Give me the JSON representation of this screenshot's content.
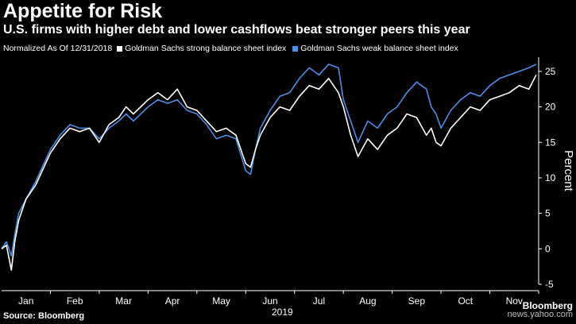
{
  "header": {
    "title": "Appetite for Risk",
    "subtitle": "U.S. firms with higher debt and lower cashflows beat stronger peers this year"
  },
  "legend": {
    "note": "Normalized As Of 12/31/2018",
    "entries": [
      {
        "label": "Goldman Sachs strong balance sheet index",
        "color": "#ffffff"
      },
      {
        "label": "Goldman Sachs weak balance sheet index",
        "color": "#4a8ee6"
      }
    ]
  },
  "footer": {
    "source": "Source: Bloomberg",
    "brand": "Bloomberg",
    "watermark": "news.yahoo.com"
  },
  "colors": {
    "background": "#000000",
    "strong": "#ffffff",
    "weak": "#4a8ee6",
    "axis": "#ffffff"
  },
  "chart_data": {
    "type": "line",
    "title": "Appetite for Risk",
    "subtitle": "U.S. firms with higher debt and lower cashflows beat stronger peers this year",
    "xlabel": "2019",
    "ylabel": "Percent",
    "ylim": [
      -5,
      27
    ],
    "yticks": [
      -5,
      0,
      5,
      10,
      15,
      20,
      25
    ],
    "xlim": [
      0,
      11
    ],
    "xtick_labels": [
      "Jan",
      "Feb",
      "Mar",
      "Apr",
      "May",
      "Jun",
      "Jul",
      "Aug",
      "Sep",
      "Oct",
      "Nov"
    ],
    "xtick_positions": [
      0.5,
      1.5,
      2.5,
      3.5,
      4.5,
      5.5,
      6.5,
      7.5,
      8.5,
      9.5,
      10.5
    ],
    "x_unit": "months since 12/31/2018",
    "grid": false,
    "legend_position": "top",
    "series": [
      {
        "name": "Goldman Sachs strong balance sheet index",
        "color": "#ffffff",
        "x": [
          0,
          0.1,
          0.2,
          0.27,
          0.35,
          0.5,
          0.7,
          0.9,
          1.0,
          1.2,
          1.4,
          1.6,
          1.8,
          2.0,
          2.2,
          2.4,
          2.55,
          2.7,
          3.0,
          3.2,
          3.4,
          3.6,
          3.8,
          4.0,
          4.2,
          4.4,
          4.6,
          4.8,
          5.0,
          5.1,
          5.2,
          5.3,
          5.5,
          5.7,
          5.9,
          6.1,
          6.3,
          6.5,
          6.7,
          6.9,
          7.0,
          7.15,
          7.3,
          7.5,
          7.7,
          7.9,
          8.1,
          8.3,
          8.5,
          8.7,
          8.8,
          8.9,
          9.0,
          9.2,
          9.4,
          9.6,
          9.8,
          10.0,
          10.2,
          10.4,
          10.6,
          10.8,
          10.95
        ],
        "values": [
          0,
          0.5,
          -3,
          1,
          4,
          7,
          9,
          12,
          13.5,
          15.5,
          17,
          16.5,
          17,
          15,
          17.5,
          18.5,
          20,
          19,
          21,
          22,
          21,
          22.5,
          20,
          19.5,
          18,
          16.5,
          17,
          16,
          12,
          11.5,
          14,
          16,
          18.5,
          20,
          19.5,
          21.5,
          23,
          22.5,
          24,
          22,
          20,
          16,
          13,
          15.5,
          14,
          16,
          17,
          19,
          18.5,
          16,
          17,
          15,
          14.5,
          17,
          18.5,
          20,
          19.5,
          21,
          21.5,
          22,
          23,
          22.5,
          24.5
        ]
      },
      {
        "name": "Goldman Sachs weak balance sheet index",
        "color": "#4a8ee6",
        "x": [
          0,
          0.1,
          0.2,
          0.27,
          0.35,
          0.5,
          0.7,
          0.9,
          1.0,
          1.2,
          1.4,
          1.6,
          1.8,
          2.0,
          2.2,
          2.4,
          2.55,
          2.7,
          3.0,
          3.2,
          3.4,
          3.6,
          3.8,
          4.0,
          4.2,
          4.4,
          4.6,
          4.8,
          5.0,
          5.1,
          5.2,
          5.3,
          5.5,
          5.7,
          5.9,
          6.1,
          6.3,
          6.5,
          6.7,
          6.9,
          7.0,
          7.15,
          7.3,
          7.5,
          7.7,
          7.9,
          8.1,
          8.3,
          8.5,
          8.7,
          8.8,
          8.9,
          9.0,
          9.2,
          9.4,
          9.6,
          9.8,
          10.0,
          10.2,
          10.4,
          10.6,
          10.8,
          10.95
        ],
        "values": [
          0,
          1,
          -1,
          2,
          5,
          7,
          9.5,
          12.5,
          14,
          16,
          17.5,
          17,
          17,
          15.5,
          17,
          18,
          19,
          18,
          20,
          21,
          20.5,
          21,
          19.5,
          19,
          17.5,
          15.5,
          16,
          15.5,
          11,
          10.5,
          14,
          17,
          19.5,
          21.5,
          22,
          24,
          25.5,
          24.5,
          26,
          25.5,
          21,
          18,
          15,
          18,
          17,
          19,
          20,
          22,
          23.5,
          22.5,
          20,
          19,
          17,
          19.5,
          21,
          22,
          21.5,
          23,
          24,
          24.5,
          25,
          25.5,
          26
        ]
      }
    ]
  }
}
